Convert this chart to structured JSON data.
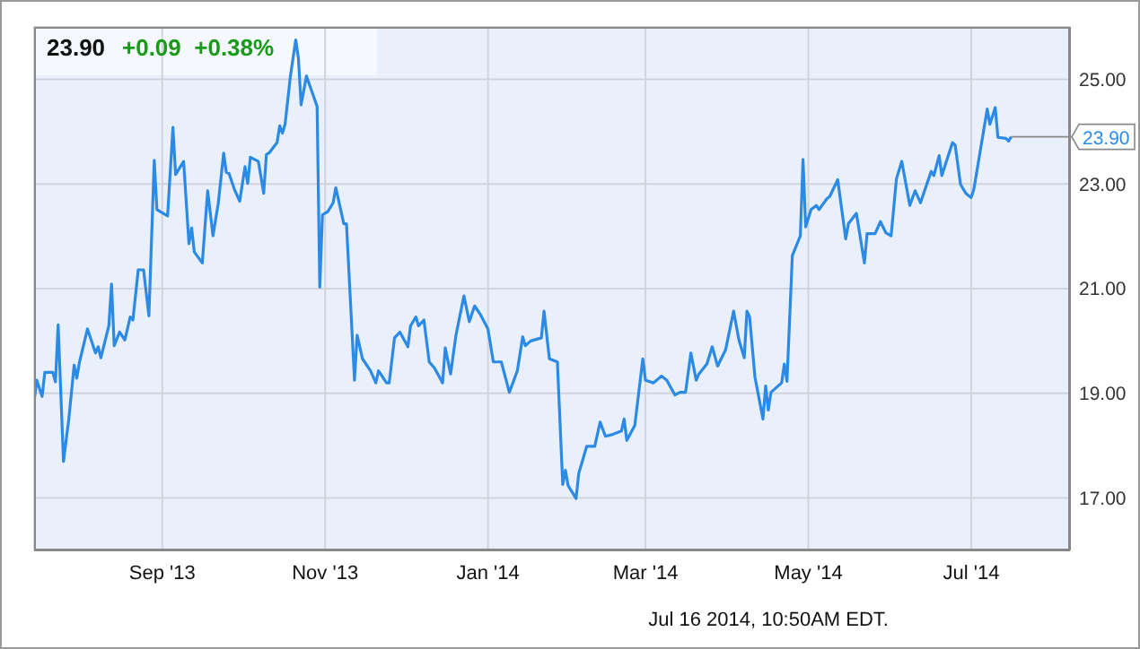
{
  "chart_data": {
    "type": "line",
    "title": "23.90",
    "subtitle": "+0.09  +0.38%",
    "annotations": [
      {
        "text": "23.90",
        "x": "2014-07-16",
        "y": 23.9
      },
      "Jul 16 2014, 10:50AM EDT."
    ],
    "x": [
      "2013-07-15",
      "2013-07-16",
      "2013-07-18",
      "2013-07-19",
      "2013-07-22",
      "2013-07-23",
      "2013-07-24",
      "2013-07-26",
      "2013-07-28",
      "2013-07-30",
      "2013-07-31",
      "2013-08-01",
      "2013-08-04",
      "2013-08-07",
      "2013-08-08",
      "2013-08-09",
      "2013-08-12",
      "2013-08-13",
      "2013-08-14",
      "2013-08-16",
      "2013-08-18",
      "2013-08-20",
      "2013-08-21",
      "2013-08-23",
      "2013-08-25",
      "2013-08-27",
      "2013-08-29",
      "2013-08-30",
      "2013-09-03",
      "2013-09-05",
      "2013-09-06",
      "2013-09-09",
      "2013-09-11",
      "2013-09-12",
      "2013-09-13",
      "2013-09-16",
      "2013-09-18",
      "2013-09-20",
      "2013-09-22",
      "2013-09-24",
      "2013-09-25",
      "2013-09-26",
      "2013-09-28",
      "2013-09-30",
      "2013-10-02",
      "2013-10-03",
      "2013-10-04",
      "2013-10-07",
      "2013-10-09",
      "2013-10-10",
      "2013-10-11",
      "2013-10-14",
      "2013-10-15",
      "2013-10-16",
      "2013-10-17",
      "2013-10-19",
      "2013-10-21",
      "2013-10-22",
      "2013-10-23",
      "2013-10-25",
      "2013-10-27",
      "2013-10-29",
      "2013-10-30",
      "2013-10-31",
      "2013-11-02",
      "2013-11-04",
      "2013-11-05",
      "2013-11-08",
      "2013-11-09",
      "2013-11-12",
      "2013-11-13",
      "2013-11-15",
      "2013-11-18",
      "2013-11-20",
      "2013-11-21",
      "2013-11-24",
      "2013-11-25",
      "2013-11-27",
      "2013-11-29",
      "2013-12-02",
      "2013-12-03",
      "2013-12-05",
      "2013-12-06",
      "2013-12-08",
      "2013-12-10",
      "2013-12-12",
      "2013-12-15",
      "2013-12-16",
      "2013-12-18",
      "2013-12-20",
      "2013-12-23",
      "2013-12-25",
      "2013-12-27",
      "2013-12-29",
      "2014-01-01",
      "2014-01-03",
      "2014-01-06",
      "2014-01-09",
      "2014-01-12",
      "2014-01-14",
      "2014-01-15",
      "2014-01-17",
      "2014-01-21",
      "2014-01-22",
      "2014-01-24",
      "2014-01-27",
      "2014-01-29",
      "2014-01-30",
      "2014-01-31",
      "2014-02-03",
      "2014-02-04",
      "2014-02-07",
      "2014-02-10",
      "2014-02-12",
      "2014-02-14",
      "2014-02-17",
      "2014-02-20",
      "2014-02-21",
      "2014-02-22",
      "2014-02-25",
      "2014-02-28",
      "2014-03-01",
      "2014-03-04",
      "2014-03-07",
      "2014-03-09",
      "2014-03-12",
      "2014-03-14",
      "2014-03-16",
      "2014-03-18",
      "2014-03-20",
      "2014-03-21",
      "2014-03-24",
      "2014-03-26",
      "2014-03-28",
      "2014-03-31",
      "2014-04-03",
      "2014-04-05",
      "2014-04-07",
      "2014-04-08",
      "2014-04-09",
      "2014-04-11",
      "2014-04-14",
      "2014-04-15",
      "2014-04-16",
      "2014-04-17",
      "2014-04-21",
      "2014-04-22",
      "2014-04-23",
      "2014-04-25",
      "2014-04-28",
      "2014-04-29",
      "2014-04-30",
      "2014-05-02",
      "2014-05-04",
      "2014-05-05",
      "2014-05-08",
      "2014-05-09",
      "2014-05-12",
      "2014-05-15",
      "2014-05-16",
      "2014-05-19",
      "2014-05-22",
      "2014-05-23",
      "2014-05-26",
      "2014-05-28",
      "2014-05-30",
      "2014-06-01",
      "2014-06-03",
      "2014-06-05",
      "2014-06-08",
      "2014-06-10",
      "2014-06-12",
      "2014-06-16",
      "2014-06-17",
      "2014-06-19",
      "2014-06-20",
      "2014-06-24",
      "2014-06-25",
      "2014-06-27",
      "2014-06-29",
      "2014-07-01",
      "2014-07-02",
      "2014-07-07",
      "2014-07-08",
      "2014-07-10",
      "2014-07-11",
      "2014-07-14",
      "2014-07-15",
      "2014-07-16"
    ],
    "series": [
      {
        "color": "#2a8ae6",
        "values": [
          18.85,
          19.25,
          18.94,
          19.4,
          19.4,
          19.22,
          20.31,
          17.7,
          18.51,
          19.54,
          19.29,
          19.6,
          20.23,
          19.77,
          19.89,
          19.68,
          20.29,
          21.09,
          19.91,
          20.17,
          20.02,
          20.46,
          20.4,
          21.36,
          21.36,
          20.48,
          23.45,
          22.51,
          22.39,
          24.08,
          23.18,
          23.43,
          21.86,
          22.16,
          21.7,
          21.49,
          22.87,
          22.01,
          22.64,
          23.59,
          23.22,
          23.2,
          22.9,
          22.67,
          23.33,
          23.01,
          23.51,
          23.43,
          22.82,
          23.56,
          23.59,
          23.79,
          24.11,
          23.97,
          24.14,
          25.06,
          25.75,
          25.4,
          24.51,
          25.06,
          24.77,
          24.48,
          21.03,
          22.41,
          22.47,
          22.64,
          22.93,
          22.24,
          22.24,
          19.25,
          20.11,
          19.66,
          19.43,
          19.2,
          19.43,
          19.2,
          19.2,
          20.06,
          20.17,
          19.89,
          20.29,
          20.46,
          20.29,
          20.4,
          19.6,
          19.48,
          19.2,
          19.87,
          19.37,
          20.11,
          20.86,
          20.37,
          20.67,
          20.52,
          20.23,
          19.6,
          19.6,
          19.02,
          19.43,
          20.08,
          19.91,
          20.0,
          20.06,
          20.57,
          19.66,
          19.6,
          17.26,
          17.53,
          17.24,
          16.99,
          17.47,
          17.99,
          17.99,
          18.45,
          18.18,
          18.22,
          18.28,
          18.51,
          18.1,
          18.39,
          19.66,
          19.25,
          19.2,
          19.33,
          19.25,
          18.97,
          19.02,
          19.02,
          19.77,
          19.25,
          19.37,
          19.56,
          19.89,
          19.52,
          19.83,
          20.57,
          20.02,
          19.68,
          20.57,
          20.46,
          19.31,
          18.51,
          19.14,
          18.68,
          19.02,
          19.2,
          19.56,
          19.23,
          21.63,
          22.01,
          23.47,
          22.18,
          22.51,
          22.59,
          22.51,
          22.72,
          22.76,
          23.08,
          21.95,
          22.24,
          22.44,
          21.49,
          22.05,
          22.05,
          22.28,
          22.07,
          22.01,
          23.1,
          23.43,
          22.59,
          22.87,
          22.64,
          23.24,
          23.16,
          23.54,
          23.16,
          23.79,
          23.74,
          22.99,
          22.82,
          22.74,
          22.9,
          24.43,
          24.14,
          24.46,
          23.89,
          23.87,
          23.82,
          23.9
        ]
      }
    ],
    "xlim": [
      "2013-07-15",
      "2014-08-07"
    ],
    "xticks": [
      {
        "value": "2013-09-01",
        "label": "Sep '13"
      },
      {
        "value": "2013-11-01",
        "label": "Nov '13"
      },
      {
        "value": "2014-01-01",
        "label": "Jan '14"
      },
      {
        "value": "2014-03-01",
        "label": "Mar '14"
      },
      {
        "value": "2014-05-01",
        "label": "May '14"
      },
      {
        "value": "2014-07-01",
        "label": "Jul '14"
      }
    ],
    "ylim": [
      16,
      26
    ],
    "yticks": [
      {
        "value": 17,
        "label": "17.00"
      },
      {
        "value": 19,
        "label": "19.00"
      },
      {
        "value": 21,
        "label": "21.00"
      },
      {
        "value": 23,
        "label": "23.00"
      },
      {
        "value": 25,
        "label": "25.00"
      }
    ],
    "grid": true,
    "legend": false,
    "marker": "none",
    "line_style": "solid"
  }
}
